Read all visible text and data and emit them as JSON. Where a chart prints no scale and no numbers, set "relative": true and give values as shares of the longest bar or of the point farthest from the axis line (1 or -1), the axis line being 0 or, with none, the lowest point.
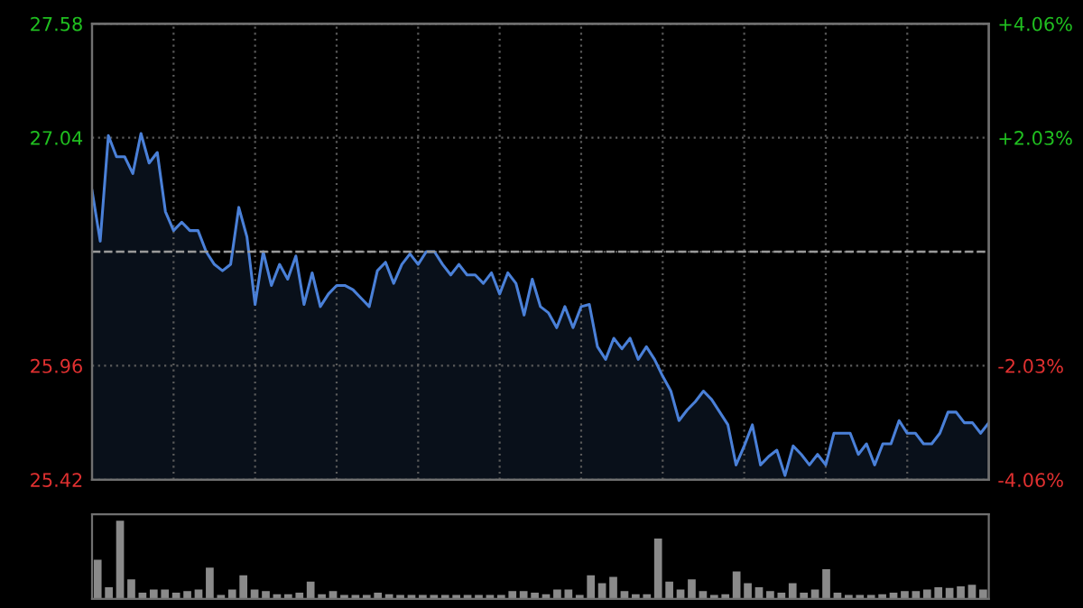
{
  "chart_data": [
    {
      "type": "area",
      "categories": [
        null,
        null,
        null,
        null,
        null,
        null,
        null,
        null,
        null,
        null,
        null,
        null,
        null,
        null,
        null,
        null,
        null,
        null,
        null,
        null,
        null,
        null,
        null,
        null,
        null,
        null,
        null,
        null,
        null,
        null,
        null,
        null,
        null,
        null,
        null,
        null,
        null,
        null,
        null,
        null,
        null,
        null,
        null,
        null,
        null,
        null,
        null,
        null,
        null,
        null,
        null,
        null,
        null,
        null,
        null,
        null,
        null,
        null,
        null,
        null,
        null,
        null,
        null,
        null,
        null,
        null,
        null,
        null,
        null,
        null,
        null,
        null,
        null,
        null,
        null,
        null,
        null,
        null,
        null,
        null,
        null,
        null,
        null,
        null,
        null,
        null,
        null,
        null,
        null,
        null,
        null,
        null,
        null,
        null,
        null,
        null,
        null,
        null,
        null,
        null,
        null,
        null,
        null,
        null,
        null,
        null,
        null,
        null,
        null,
        null,
        null
      ],
      "ylim": [
        25.42,
        27.58
      ],
      "yticks": [
        25.42,
        25.96,
        {
          "value": 26.5,
          "label": null
        },
        27.04,
        27.58
      ],
      "y2lim": [
        -4.06,
        4.06
      ],
      "y2ticks": [
        {
          "value": -4.06,
          "label": "-4.06%"
        },
        {
          "value": -2.03,
          "label": "-2.03%"
        },
        {
          "value": 0,
          "label": null
        },
        {
          "value": 2.03,
          "label": "+2.03%"
        },
        {
          "value": 4.06,
          "label": "+4.06%"
        }
      ],
      "grid": true,
      "tick_labels": "y",
      "ref_lines": [
        {
          "axis": "y",
          "value": 26.5,
          "color": "#9a9a9a",
          "line_style": "dashed"
        }
      ],
      "series": [
        {
          "color": "#4a80d8",
          "values": [
            26.79,
            26.55,
            27.05,
            26.95,
            26.95,
            26.87,
            27.06,
            26.92,
            26.97,
            26.69,
            26.6,
            26.64,
            26.6,
            26.6,
            26.5,
            26.44,
            26.41,
            26.44,
            26.71,
            26.57,
            26.25,
            26.5,
            26.34,
            26.44,
            26.37,
            26.48,
            26.25,
            26.4,
            26.24,
            26.3,
            26.34,
            26.34,
            26.32,
            26.28,
            26.24,
            26.41,
            26.45,
            26.35,
            26.44,
            26.49,
            26.44,
            26.5,
            26.5,
            26.44,
            26.39,
            26.44,
            26.39,
            26.39,
            26.35,
            26.4,
            26.3,
            26.4,
            26.35,
            26.2,
            26.37,
            26.24,
            26.21,
            26.14,
            26.24,
            26.14,
            26.24,
            26.25,
            26.05,
            25.99,
            26.09,
            26.04,
            26.09,
            25.99,
            26.05,
            25.99,
            25.91,
            25.84,
            25.7,
            25.75,
            25.79,
            25.84,
            25.8,
            25.74,
            25.68,
            25.49,
            25.58,
            25.68,
            25.49,
            25.53,
            25.56,
            25.44,
            25.58,
            25.54,
            25.49,
            25.54,
            25.49,
            25.64,
            25.64,
            25.64,
            25.54,
            25.59,
            25.49,
            25.59,
            25.59,
            25.7,
            25.64,
            25.64,
            25.59,
            25.59,
            25.64,
            25.74,
            25.74,
            25.69,
            25.69,
            25.64,
            25.69
          ]
        }
      ]
    },
    {
      "type": "bar",
      "relative": true,
      "color": "#8a8a8a",
      "categories": [
        null,
        null,
        null,
        null,
        null,
        null,
        null,
        null,
        null,
        null,
        null,
        null,
        null,
        null,
        null,
        null,
        null,
        null,
        null,
        null,
        null,
        null,
        null,
        null,
        null,
        null,
        null,
        null,
        null,
        null,
        null,
        null,
        null,
        null,
        null,
        null,
        null,
        null,
        null,
        null,
        null,
        null,
        null,
        null,
        null,
        null,
        null,
        null,
        null,
        null,
        null,
        null,
        null,
        null,
        null,
        null,
        null,
        null,
        null,
        null,
        null,
        null,
        null,
        null,
        null,
        null,
        null,
        null,
        null,
        null,
        null,
        null,
        null,
        null,
        null,
        null,
        null,
        null,
        null,
        null
      ],
      "values": [
        0.5,
        0.15,
        1.0,
        0.25,
        0.08,
        0.12,
        0.12,
        0.08,
        0.1,
        0.12,
        0.4,
        0.05,
        0.12,
        0.3,
        0.12,
        0.1,
        0.06,
        0.06,
        0.08,
        0.22,
        0.06,
        0.1,
        0.05,
        0.05,
        0.05,
        0.08,
        0.06,
        0.05,
        0.05,
        0.05,
        0.05,
        0.05,
        0.05,
        0.05,
        0.05,
        0.05,
        0.05,
        0.1,
        0.1,
        0.08,
        0.06,
        0.12,
        0.12,
        0.05,
        0.3,
        0.2,
        0.28,
        0.1,
        0.06,
        0.06,
        0.77,
        0.22,
        0.12,
        0.25,
        0.1,
        0.05,
        0.06,
        0.35,
        0.2,
        0.15,
        0.1,
        0.08,
        0.2,
        0.08,
        0.12,
        0.38,
        0.08,
        0.05,
        0.05,
        0.05,
        0.06,
        0.08,
        0.1,
        0.1,
        0.12,
        0.15,
        0.14,
        0.16,
        0.18,
        0.12
      ]
    }
  ]
}
